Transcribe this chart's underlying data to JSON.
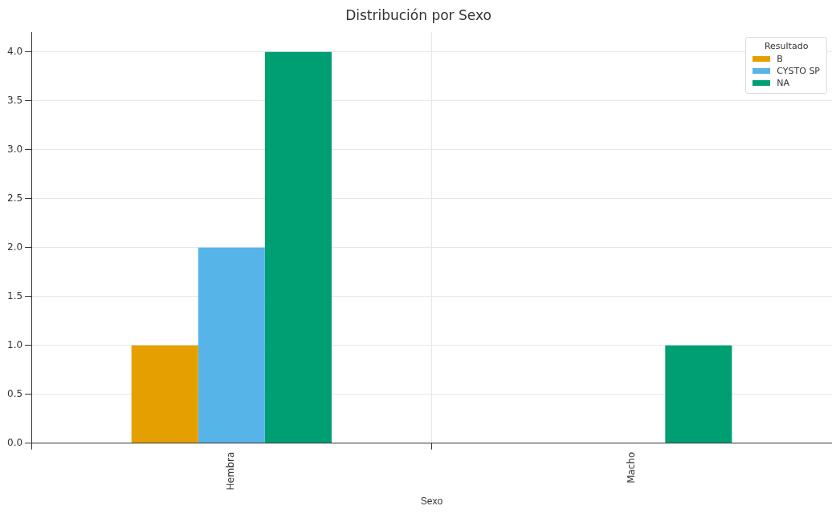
{
  "chart_data": {
    "type": "bar",
    "title": "Distribución por Sexo",
    "xlabel": "Sexo",
    "legend_title": "Resultado",
    "categories": [
      "Hembra",
      "Macho"
    ],
    "series": [
      {
        "name": "B",
        "color": "#e69f00",
        "values": [
          1,
          0
        ]
      },
      {
        "name": "CYSTO SP",
        "color": "#56b4e9",
        "values": [
          2,
          0
        ]
      },
      {
        "name": "NA",
        "color": "#009e73",
        "values": [
          4,
          1
        ]
      }
    ],
    "ylim": [
      0,
      4.2
    ],
    "yticks": [
      {
        "value": 0,
        "label": "0.0"
      },
      {
        "value": 0.5,
        "label": "0.5"
      },
      {
        "value": 1,
        "label": "1.0"
      },
      {
        "value": 1.5,
        "label": "1.5"
      },
      {
        "value": 2,
        "label": "2.0"
      },
      {
        "value": 2.5,
        "label": "2.5"
      },
      {
        "value": 3,
        "label": "3.0"
      },
      {
        "value": 3.5,
        "label": "3.5"
      },
      {
        "value": 4,
        "label": "4.0"
      }
    ],
    "grid": true,
    "legend": "top right"
  }
}
